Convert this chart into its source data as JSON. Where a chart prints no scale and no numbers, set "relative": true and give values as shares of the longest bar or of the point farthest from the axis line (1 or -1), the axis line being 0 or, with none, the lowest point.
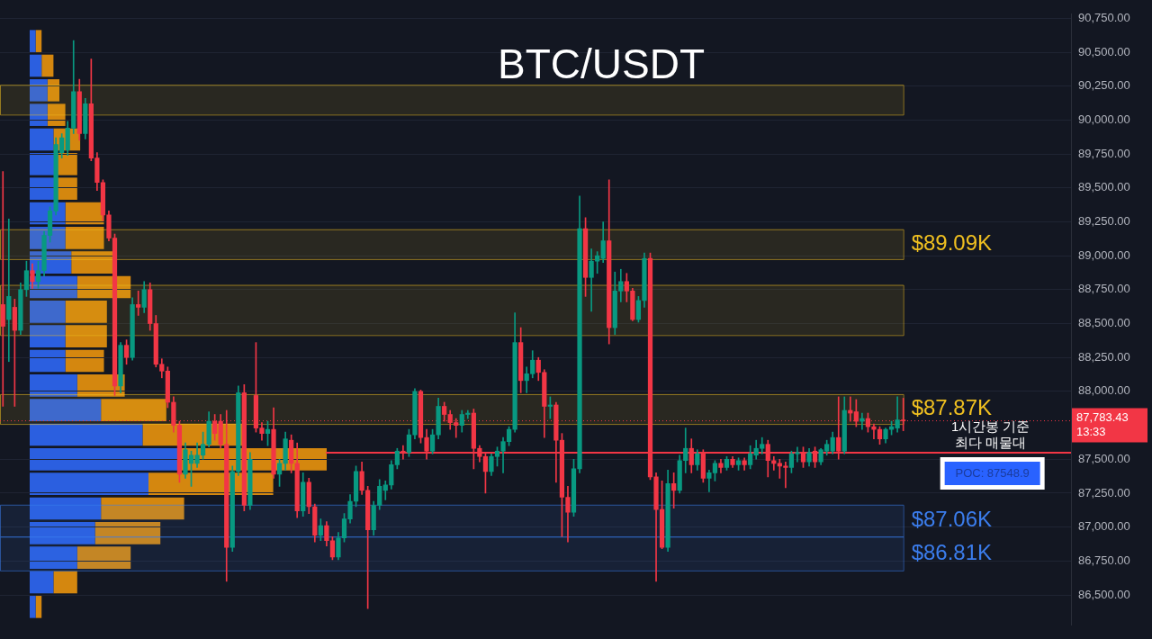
{
  "chart_data": [
    {
      "type": "candlestick",
      "title": "BTC/USDT",
      "categories": [
        null,
        null,
        null,
        null,
        null,
        null,
        null,
        null,
        null,
        null,
        null,
        null,
        null,
        null,
        null,
        null,
        null,
        null,
        null,
        null,
        null,
        null,
        null,
        null,
        null,
        null,
        null,
        null,
        null,
        null,
        null,
        null,
        null,
        null,
        null,
        null,
        null,
        null,
        null,
        null,
        null,
        null,
        null,
        null,
        null,
        null,
        null,
        null,
        null,
        null,
        null,
        null,
        null,
        null,
        null,
        null,
        null,
        null,
        null,
        null,
        null,
        null,
        null,
        null,
        null,
        null,
        null,
        null,
        null,
        null,
        null,
        null,
        null,
        null,
        null,
        null,
        null,
        null,
        null,
        null,
        null,
        null,
        null,
        null,
        null,
        null,
        null,
        null,
        null,
        null,
        null,
        null,
        null,
        null,
        null,
        null,
        null,
        null,
        null,
        null,
        null,
        null,
        null,
        null,
        null,
        null,
        null,
        null,
        null,
        null,
        null,
        null,
        null,
        null,
        null,
        null,
        null,
        null,
        null,
        null,
        null,
        null,
        null,
        null,
        null,
        null,
        null,
        null,
        null,
        null,
        null,
        null,
        null,
        null,
        null,
        null,
        null,
        null,
        null,
        null,
        null,
        null,
        null,
        null,
        null,
        null,
        null,
        null,
        null,
        null,
        null,
        null,
        null,
        null,
        null,
        null,
        null,
        null,
        null,
        null,
        null,
        null,
        null,
        null,
        null,
        null,
        null,
        null,
        null,
        null,
        null,
        null,
        null,
        null,
        null,
        null,
        null,
        null,
        null,
        null,
        null,
        null
      ],
      "ohlc": [
        [
          88640,
          89620,
          87890,
          88480
        ],
        [
          88530,
          89270,
          88220,
          88700
        ],
        [
          88620,
          88680,
          87890,
          88450
        ],
        [
          88450,
          88800,
          88420,
          88750
        ],
        [
          88750,
          88960,
          88700,
          88890
        ],
        [
          88890,
          88940,
          88760,
          88810
        ],
        [
          88810,
          88960,
          88760,
          88890
        ],
        [
          88890,
          89180,
          88850,
          89150
        ],
        [
          89150,
          89360,
          89100,
          89330
        ],
        [
          89330,
          89870,
          89300,
          89820
        ],
        [
          89760,
          89900,
          89720,
          89870
        ],
        [
          89780,
          89990,
          89740,
          89940
        ],
        [
          89940,
          90585,
          89900,
          90210
        ],
        [
          90210,
          90300,
          89850,
          89900
        ],
        [
          89900,
          90160,
          89860,
          90120
        ],
        [
          90120,
          90450,
          89700,
          89720
        ],
        [
          89720,
          89760,
          89480,
          89540
        ],
        [
          89540,
          89560,
          89260,
          89300
        ],
        [
          89300,
          89330,
          89110,
          89130
        ],
        [
          89130,
          89160,
          87970,
          88040
        ],
        [
          88040,
          88360,
          87990,
          88340
        ],
        [
          88340,
          88380,
          88200,
          88250
        ],
        [
          88250,
          88690,
          88230,
          88640
        ],
        [
          88640,
          88740,
          88560,
          88620
        ],
        [
          88620,
          88810,
          88580,
          88750
        ],
        [
          88750,
          88800,
          88450,
          88500
        ],
        [
          88500,
          88560,
          88180,
          88200
        ],
        [
          88200,
          88240,
          88100,
          88150
        ],
        [
          88150,
          88180,
          87880,
          87920
        ],
        [
          87920,
          87960,
          87700,
          87750
        ],
        [
          87750,
          87780,
          87330,
          87390
        ],
        [
          87390,
          87620,
          87360,
          87570
        ],
        [
          87470,
          87560,
          87300,
          87530
        ],
        [
          87470,
          87620,
          87440,
          87530
        ],
        [
          87530,
          87700,
          87500,
          87610
        ],
        [
          87610,
          87850,
          87590,
          87780
        ],
        [
          87780,
          87830,
          87640,
          87690
        ],
        [
          87780,
          87830,
          87580,
          87610
        ],
        [
          87610,
          87860,
          86600,
          86850
        ],
        [
          86850,
          87450,
          86820,
          87410
        ],
        [
          87410,
          88040,
          87380,
          87990
        ],
        [
          87990,
          88050,
          87120,
          87160
        ],
        [
          87160,
          87550,
          87130,
          87500
        ],
        [
          87970,
          88360,
          87700,
          87730
        ],
        [
          87730,
          87770,
          87640,
          87690
        ],
        [
          87690,
          87780,
          87600,
          87720
        ],
        [
          87720,
          87880,
          87360,
          87390
        ],
        [
          87390,
          87500,
          87300,
          87470
        ],
        [
          87470,
          87700,
          87420,
          87650
        ],
        [
          87640,
          87680,
          87400,
          87470
        ],
        [
          87470,
          87620,
          87070,
          87120
        ],
        [
          87120,
          87400,
          87080,
          87330
        ],
        [
          87330,
          87360,
          87100,
          87150
        ],
        [
          87150,
          87170,
          86890,
          86940
        ],
        [
          86940,
          87060,
          86900,
          87010
        ],
        [
          87010,
          87040,
          86860,
          86900
        ],
        [
          86900,
          86930,
          86760,
          86780
        ],
        [
          86780,
          86960,
          86760,
          86920
        ],
        [
          86920,
          87100,
          86890,
          87060
        ],
        [
          87060,
          87240,
          87030,
          87190
        ],
        [
          87190,
          87450,
          87150,
          87410
        ],
        [
          87410,
          87480,
          87240,
          87270
        ],
        [
          87270,
          87300,
          86400,
          86980
        ],
        [
          86980,
          87190,
          86940,
          87160
        ],
        [
          87160,
          87350,
          87130,
          87300
        ],
        [
          87270,
          87340,
          87200,
          87310
        ],
        [
          87310,
          87490,
          87280,
          87460
        ],
        [
          87460,
          87580,
          87430,
          87560
        ],
        [
          87560,
          87600,
          87500,
          87550
        ],
        [
          87550,
          87720,
          87520,
          87680
        ],
        [
          87680,
          88020,
          87650,
          88000
        ],
        [
          88000,
          88010,
          87620,
          87660
        ],
        [
          87660,
          87720,
          87500,
          87560
        ],
        [
          87560,
          87720,
          87540,
          87680
        ],
        [
          87680,
          87950,
          87650,
          87890
        ],
        [
          87890,
          87920,
          87780,
          87830
        ],
        [
          87830,
          87860,
          87720,
          87770
        ],
        [
          87770,
          87800,
          87660,
          87750
        ],
        [
          87750,
          87860,
          87700,
          87830
        ],
        [
          87830,
          87860,
          87800,
          87840
        ],
        [
          87840,
          87870,
          87430,
          87580
        ],
        [
          87580,
          87600,
          87480,
          87520
        ],
        [
          87520,
          87540,
          87250,
          87410
        ],
        [
          87410,
          87540,
          87380,
          87520
        ],
        [
          87520,
          87590,
          87450,
          87560
        ],
        [
          87560,
          87660,
          87400,
          87630
        ],
        [
          87630,
          87740,
          87600,
          87720
        ],
        [
          87720,
          88580,
          87700,
          88360
        ],
        [
          88360,
          88470,
          87990,
          88080
        ],
        [
          88080,
          88180,
          87990,
          88130
        ],
        [
          88130,
          88300,
          88100,
          88230
        ],
        [
          88230,
          88250,
          88080,
          88140
        ],
        [
          88140,
          88160,
          87660,
          87890
        ],
        [
          87890,
          87960,
          87800,
          87900
        ],
        [
          87900,
          87920,
          87330,
          87640
        ],
        [
          87640,
          87690,
          86930,
          87220
        ],
        [
          87220,
          87300,
          86890,
          87110
        ],
        [
          87110,
          87500,
          87080,
          87430
        ],
        [
          87430,
          89440,
          87400,
          89200
        ],
        [
          89200,
          89280,
          88700,
          88840
        ],
        [
          88840,
          89050,
          88590,
          88960
        ],
        [
          88960,
          89030,
          88870,
          89000
        ],
        [
          88980,
          89250,
          88950,
          89110
        ],
        [
          89110,
          89560,
          88350,
          88470
        ],
        [
          88470,
          88880,
          88420,
          88740
        ],
        [
          88740,
          88900,
          88660,
          88810
        ],
        [
          88810,
          88870,
          88660,
          88740
        ],
        [
          88740,
          88760,
          88520,
          88530
        ],
        [
          88530,
          88700,
          88510,
          88670
        ],
        [
          88670,
          89020,
          88620,
          88980
        ],
        [
          88980,
          89020,
          87350,
          87370
        ],
        [
          87370,
          87400,
          86600,
          87130
        ],
        [
          87130,
          87340,
          86840,
          86850
        ],
        [
          86850,
          87420,
          86820,
          87320
        ],
        [
          87320,
          87400,
          87140,
          87270
        ],
        [
          87270,
          87530,
          87250,
          87490
        ],
        [
          87490,
          87730,
          87400,
          87580
        ],
        [
          87580,
          87650,
          87400,
          87460
        ],
        [
          87460,
          87570,
          87420,
          87540
        ],
        [
          87540,
          87570,
          87330,
          87360
        ],
        [
          87360,
          87420,
          87260,
          87400
        ],
        [
          87400,
          87490,
          87340,
          87470
        ],
        [
          87470,
          87500,
          87400,
          87440
        ],
        [
          87440,
          87520,
          87420,
          87500
        ],
        [
          87500,
          87520,
          87440,
          87460
        ],
        [
          87460,
          87510,
          87420,
          87490
        ],
        [
          87490,
          87510,
          87420,
          87460
        ],
        [
          87460,
          87600,
          87430,
          87540
        ],
        [
          87530,
          87640,
          87500,
          87580
        ],
        [
          87580,
          87660,
          87540,
          87610
        ],
        [
          87610,
          87640,
          87370,
          87490
        ],
        [
          87490,
          87520,
          87420,
          87470
        ],
        [
          87470,
          87500,
          87360,
          87450
        ],
        [
          87450,
          87480,
          87290,
          87440
        ],
        [
          87440,
          87560,
          87400,
          87540
        ],
        [
          87540,
          87590,
          87480,
          87550
        ],
        [
          87550,
          87590,
          87440,
          87480
        ],
        [
          87480,
          87580,
          87450,
          87550
        ],
        [
          87560,
          87590,
          87440,
          87480
        ],
        [
          87480,
          87580,
          87460,
          87570
        ],
        [
          87560,
          87640,
          87530,
          87610
        ],
        [
          87560,
          87700,
          87540,
          87660
        ],
        [
          87660,
          87960,
          87500,
          87560
        ],
        [
          87560,
          87960,
          87540,
          87860
        ],
        [
          87860,
          87960,
          87780,
          87840
        ],
        [
          87850,
          87940,
          87740,
          87780
        ],
        [
          87780,
          87840,
          87720,
          87800
        ],
        [
          87800,
          87840,
          87700,
          87740
        ],
        [
          87740,
          87760,
          87650,
          87720
        ],
        [
          87720,
          87740,
          87610,
          87650
        ],
        [
          87650,
          87730,
          87620,
          87720
        ],
        [
          87720,
          87780,
          87680,
          87740
        ],
        [
          87730,
          87960,
          87700,
          87790
        ],
        [
          87790,
          87950,
          87710,
          87783.43
        ],
        null,
        null,
        null,
        null,
        null,
        null,
        null,
        null,
        null,
        null,
        null,
        null,
        null,
        null,
        null,
        null,
        null,
        null,
        null,
        null,
        null,
        null,
        null,
        null,
        null,
        null,
        null,
        null
      ],
      "ylim": [
        86280,
        90780
      ],
      "yticks": [
        {
          "value": 86500,
          "label": "86,500.00"
        },
        {
          "value": 86750,
          "label": "86,750.00"
        },
        {
          "value": 87000,
          "label": "87,000.00"
        },
        {
          "value": 87250,
          "label": "87,250.00"
        },
        {
          "value": 87500,
          "label": "87,500.00"
        },
        {
          "value": 88000,
          "label": "88,000.00"
        },
        {
          "value": 88250,
          "label": "88,250.00"
        },
        {
          "value": 88500,
          "label": "88,500.00"
        },
        {
          "value": 88750,
          "label": "88,750.00"
        },
        {
          "value": 89000,
          "label": "89,000.00"
        },
        {
          "value": 89250,
          "label": "89,250.00"
        },
        {
          "value": 89500,
          "label": "89,500.00"
        },
        {
          "value": 89750,
          "label": "89,750.00"
        },
        {
          "value": 90000,
          "label": "90,000.00"
        },
        {
          "value": 90250,
          "label": "90,250.00"
        },
        {
          "value": 90500,
          "label": "90,500.00"
        },
        {
          "value": 90750,
          "label": "90,750.00"
        }
      ],
      "grid": "y",
      "tick_labels": "y",
      "bands": [
        {
          "axis": "y",
          "from": 90040,
          "to": 90260,
          "color": "#f0c020"
        },
        {
          "axis": "y",
          "from": 88975,
          "to": 89195,
          "label": "$89.09K",
          "color": "#f0c020"
        },
        {
          "axis": "y",
          "from": 88415,
          "to": 88785,
          "color": "#f0c020"
        },
        {
          "axis": "y",
          "from": 87760,
          "to": 87980,
          "label": "$87.87K",
          "color": "#f0c020"
        },
        {
          "axis": "y",
          "from": 86930,
          "to": 87165,
          "label": "$87.06K",
          "color": "#3b7ded"
        },
        {
          "axis": "y",
          "from": 86680,
          "to": 86930,
          "label": "$86.81K",
          "color": "#3b7ded"
        }
      ],
      "ref_lines": [
        {
          "axis": "y",
          "value": 87548.9,
          "label": "POC: 87548.9",
          "color": "#f23645",
          "line_style": "solid"
        },
        {
          "axis": "y",
          "value": 87783.43,
          "label": "87,783.43\n13:33",
          "color": "#f23645",
          "line_style": "dotted"
        }
      ],
      "annotations": [
        {
          "text": "1시간봉 기준\n최다 매물대",
          "y": 87548.9
        }
      ]
    },
    {
      "type": "bar",
      "orientation": "horizontal",
      "stacked": true,
      "relative": true,
      "categories": [
        null,
        null,
        null,
        null,
        null,
        null,
        null,
        null,
        null,
        null,
        null,
        null,
        null,
        null,
        null,
        null,
        null,
        null,
        null,
        null,
        null,
        null,
        null,
        null
      ],
      "series": [
        {
          "color": "#2b5fe0",
          "values": [
            0.02,
            0.04,
            0.06,
            0.06,
            0.08,
            0.09,
            0.09,
            0.12,
            0.12,
            0.14,
            0.16,
            0.12,
            0.12,
            0.12,
            0.16,
            0.24,
            0.38,
            0.5,
            0.4,
            0.24,
            0.22,
            0.16,
            0.08,
            0.02
          ]
        },
        {
          "color": "#d4870f",
          "values": [
            0.02,
            0.04,
            0.04,
            0.06,
            0.09,
            0.07,
            0.07,
            0.13,
            0.13,
            0.14,
            0.18,
            0.14,
            0.14,
            0.13,
            0.16,
            0.22,
            0.34,
            0.5,
            0.42,
            0.28,
            0.22,
            0.18,
            0.08,
            0.02
          ]
        }
      ]
    }
  ]
}
